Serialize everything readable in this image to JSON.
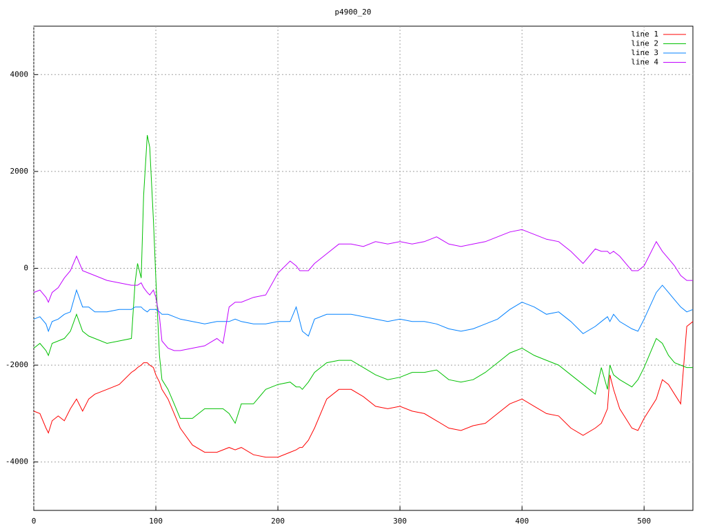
{
  "chart_data": {
    "type": "line",
    "title": "p4900_20",
    "x": [
      0,
      5,
      10,
      12,
      15,
      20,
      25,
      30,
      35,
      40,
      45,
      50,
      60,
      70,
      80,
      83,
      85,
      88,
      90,
      93,
      95,
      98,
      100,
      103,
      105,
      110,
      115,
      120,
      130,
      140,
      150,
      155,
      160,
      165,
      170,
      180,
      190,
      200,
      210,
      215,
      218,
      220,
      225,
      230,
      240,
      250,
      260,
      270,
      280,
      290,
      300,
      310,
      320,
      330,
      340,
      350,
      360,
      370,
      380,
      390,
      400,
      410,
      420,
      430,
      440,
      450,
      460,
      465,
      470,
      472,
      475,
      480,
      490,
      495,
      500,
      510,
      515,
      520,
      525,
      530,
      535,
      540
    ],
    "series": [
      {
        "name": "line 1",
        "color": "#ff0000",
        "values": [
          -2950,
          -3000,
          -3300,
          -3400,
          -3150,
          -3050,
          -3150,
          -2900,
          -2700,
          -2950,
          -2700,
          -2600,
          -2500,
          -2400,
          -2150,
          -2100,
          -2050,
          -2000,
          -1950,
          -1950,
          -2000,
          -2050,
          -2200,
          -2350,
          -2500,
          -2700,
          -3000,
          -3300,
          -3650,
          -3800,
          -3800,
          -3750,
          -3700,
          -3750,
          -3700,
          -3850,
          -3900,
          -3900,
          -3800,
          -3750,
          -3700,
          -3700,
          -3550,
          -3300,
          -2700,
          -2500,
          -2500,
          -2650,
          -2850,
          -2900,
          -2850,
          -2950,
          -3000,
          -3150,
          -3300,
          -3350,
          -3250,
          -3200,
          -3000,
          -2800,
          -2700,
          -2850,
          -3000,
          -3050,
          -3300,
          -3450,
          -3300,
          -3200,
          -2900,
          -2200,
          -2500,
          -2900,
          -3300,
          -3350,
          -3100,
          -2700,
          -2300,
          -2400,
          -2600,
          -2800,
          -1200,
          -1100
        ]
      },
      {
        "name": "line 2",
        "color": "#00c000",
        "values": [
          -1650,
          -1550,
          -1700,
          -1800,
          -1550,
          -1500,
          -1450,
          -1300,
          -950,
          -1300,
          -1400,
          -1450,
          -1550,
          -1500,
          -1450,
          -300,
          100,
          -200,
          1500,
          2750,
          2500,
          1000,
          -200,
          -1800,
          -2300,
          -2500,
          -2800,
          -3100,
          -3100,
          -2900,
          -2900,
          -2900,
          -3000,
          -3200,
          -2800,
          -2800,
          -2500,
          -2400,
          -2350,
          -2450,
          -2450,
          -2500,
          -2350,
          -2150,
          -1950,
          -1900,
          -1900,
          -2050,
          -2200,
          -2300,
          -2250,
          -2150,
          -2150,
          -2100,
          -2300,
          -2350,
          -2300,
          -2150,
          -1950,
          -1750,
          -1650,
          -1800,
          -1900,
          -2000,
          -2200,
          -2400,
          -2600,
          -2050,
          -2500,
          -2000,
          -2200,
          -2300,
          -2450,
          -2300,
          -2050,
          -1450,
          -1550,
          -1800,
          -1950,
          -2000,
          -2050,
          -2050
        ]
      },
      {
        "name": "line 3",
        "color": "#0080ff",
        "values": [
          -1050,
          -1000,
          -1150,
          -1300,
          -1100,
          -1050,
          -950,
          -900,
          -450,
          -800,
          -800,
          -900,
          -900,
          -850,
          -850,
          -800,
          -800,
          -800,
          -850,
          -900,
          -850,
          -850,
          -850,
          -900,
          -950,
          -950,
          -1000,
          -1050,
          -1100,
          -1150,
          -1100,
          -1100,
          -1100,
          -1050,
          -1100,
          -1150,
          -1150,
          -1100,
          -1100,
          -800,
          -1100,
          -1300,
          -1400,
          -1050,
          -950,
          -950,
          -950,
          -1000,
          -1050,
          -1100,
          -1050,
          -1100,
          -1100,
          -1150,
          -1250,
          -1300,
          -1250,
          -1150,
          -1050,
          -850,
          -700,
          -800,
          -950,
          -900,
          -1100,
          -1350,
          -1200,
          -1100,
          -1000,
          -1100,
          -950,
          -1100,
          -1250,
          -1300,
          -1050,
          -500,
          -350,
          -500,
          -650,
          -800,
          -900,
          -850
        ]
      },
      {
        "name": "line 4",
        "color": "#c000ff",
        "values": [
          -500,
          -450,
          -600,
          -700,
          -500,
          -400,
          -200,
          -50,
          250,
          -50,
          -100,
          -150,
          -250,
          -300,
          -350,
          -350,
          -350,
          -300,
          -400,
          -500,
          -550,
          -450,
          -600,
          -1000,
          -1500,
          -1650,
          -1700,
          -1700,
          -1650,
          -1600,
          -1450,
          -1550,
          -800,
          -700,
          -700,
          -600,
          -550,
          -100,
          150,
          50,
          -50,
          -50,
          -50,
          100,
          300,
          500,
          500,
          450,
          550,
          500,
          550,
          500,
          550,
          650,
          500,
          450,
          500,
          550,
          650,
          750,
          800,
          700,
          600,
          550,
          350,
          100,
          400,
          350,
          350,
          300,
          350,
          250,
          -50,
          -50,
          50,
          550,
          350,
          200,
          50,
          -150,
          -250,
          -250
        ]
      }
    ],
    "xlim": [
      0,
      540
    ],
    "ylim": [
      -5000,
      5000
    ],
    "xticks": [
      0,
      100,
      200,
      300,
      400,
      500
    ],
    "yticks": [
      -4000,
      -2000,
      0,
      2000,
      4000
    ],
    "grid": true,
    "legend": "top-right"
  }
}
